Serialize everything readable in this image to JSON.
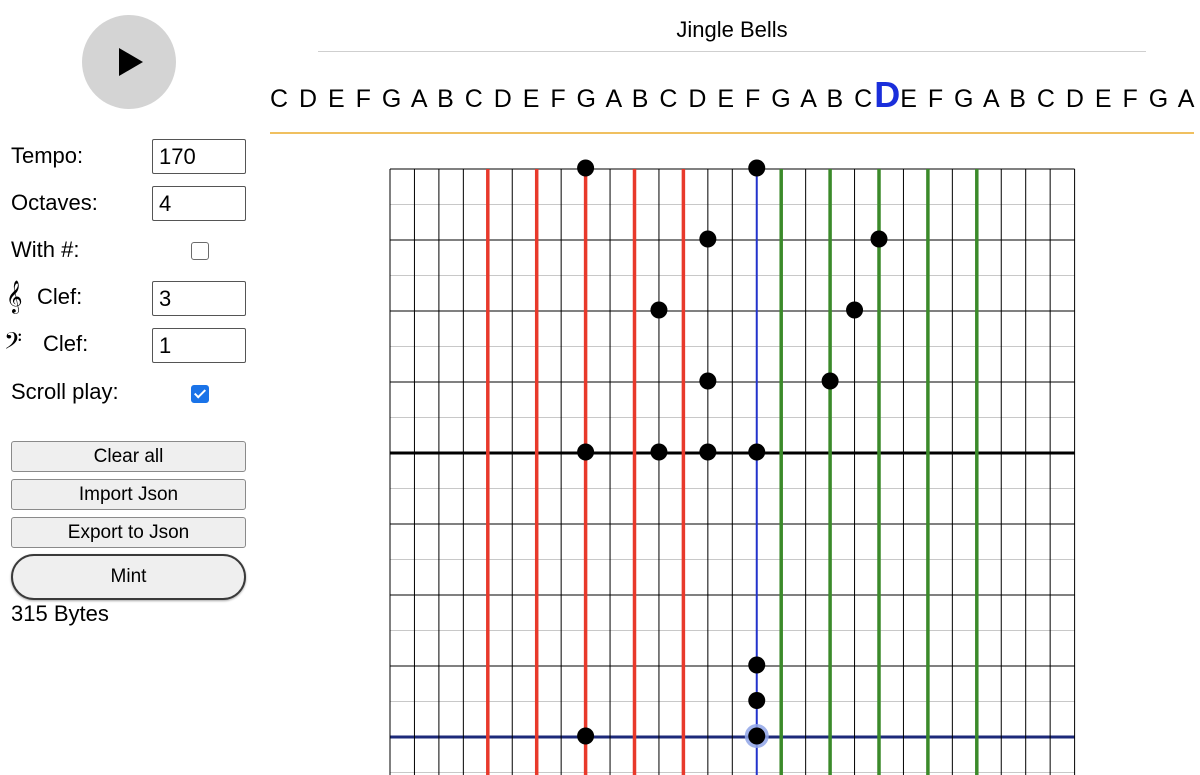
{
  "controls": {
    "tempo_label": "Tempo:",
    "tempo_value": "170",
    "octaves_label": "Octaves:",
    "octaves_value": "4",
    "sharp_label": "With #:",
    "sharp_checked": false,
    "treble_clef_label": "Clef:",
    "treble_clef_value": "3",
    "bass_clef_label": "Clef:",
    "bass_clef_value": "1",
    "scroll_play_label": "Scroll play:",
    "scroll_play_checked": true,
    "treble_clef_glyph": "𝄞",
    "bass_clef_glyph": "𝄢"
  },
  "buttons": {
    "play_icon": "play-icon",
    "clear_all": "Clear all",
    "import_json": "Import Json",
    "export_json": "Export to Json",
    "mint": "Mint"
  },
  "status": {
    "size": "315 Bytes"
  },
  "song": {
    "title": "Jingle Bells"
  },
  "note_strip": {
    "before": "C D E F G A B C D E F G A B C D E F G A B C",
    "highlight": "D",
    "after": "E F G A B C D E F G A B C",
    "highlight_color": "#1a2edb"
  },
  "roll": {
    "colors": {
      "red": "#e8392b",
      "green": "#3b8a2a",
      "blue": "#2233cc",
      "grid": "#000000",
      "faint": "#c8c8c8",
      "note": "#000000",
      "cursor_note": "#8fa5e8"
    },
    "red_columns": [
      4,
      6,
      8,
      10,
      12
    ],
    "green_columns": [
      16,
      18,
      20,
      22,
      24
    ],
    "cursor_column": 15,
    "bold_rows": [
      4
    ],
    "blue_rows": [
      8
    ],
    "notes": [
      [
        8,
        0
      ],
      [
        15,
        0
      ],
      [
        13,
        1
      ],
      [
        20,
        1
      ],
      [
        11,
        2
      ],
      [
        19,
        2
      ],
      [
        13,
        3
      ],
      [
        18,
        3
      ],
      [
        8,
        4
      ],
      [
        11,
        4
      ],
      [
        13,
        4
      ],
      [
        15,
        4
      ],
      [
        15,
        7
      ],
      [
        15,
        7.5
      ],
      [
        8,
        8
      ],
      [
        15,
        8
      ]
    ]
  }
}
